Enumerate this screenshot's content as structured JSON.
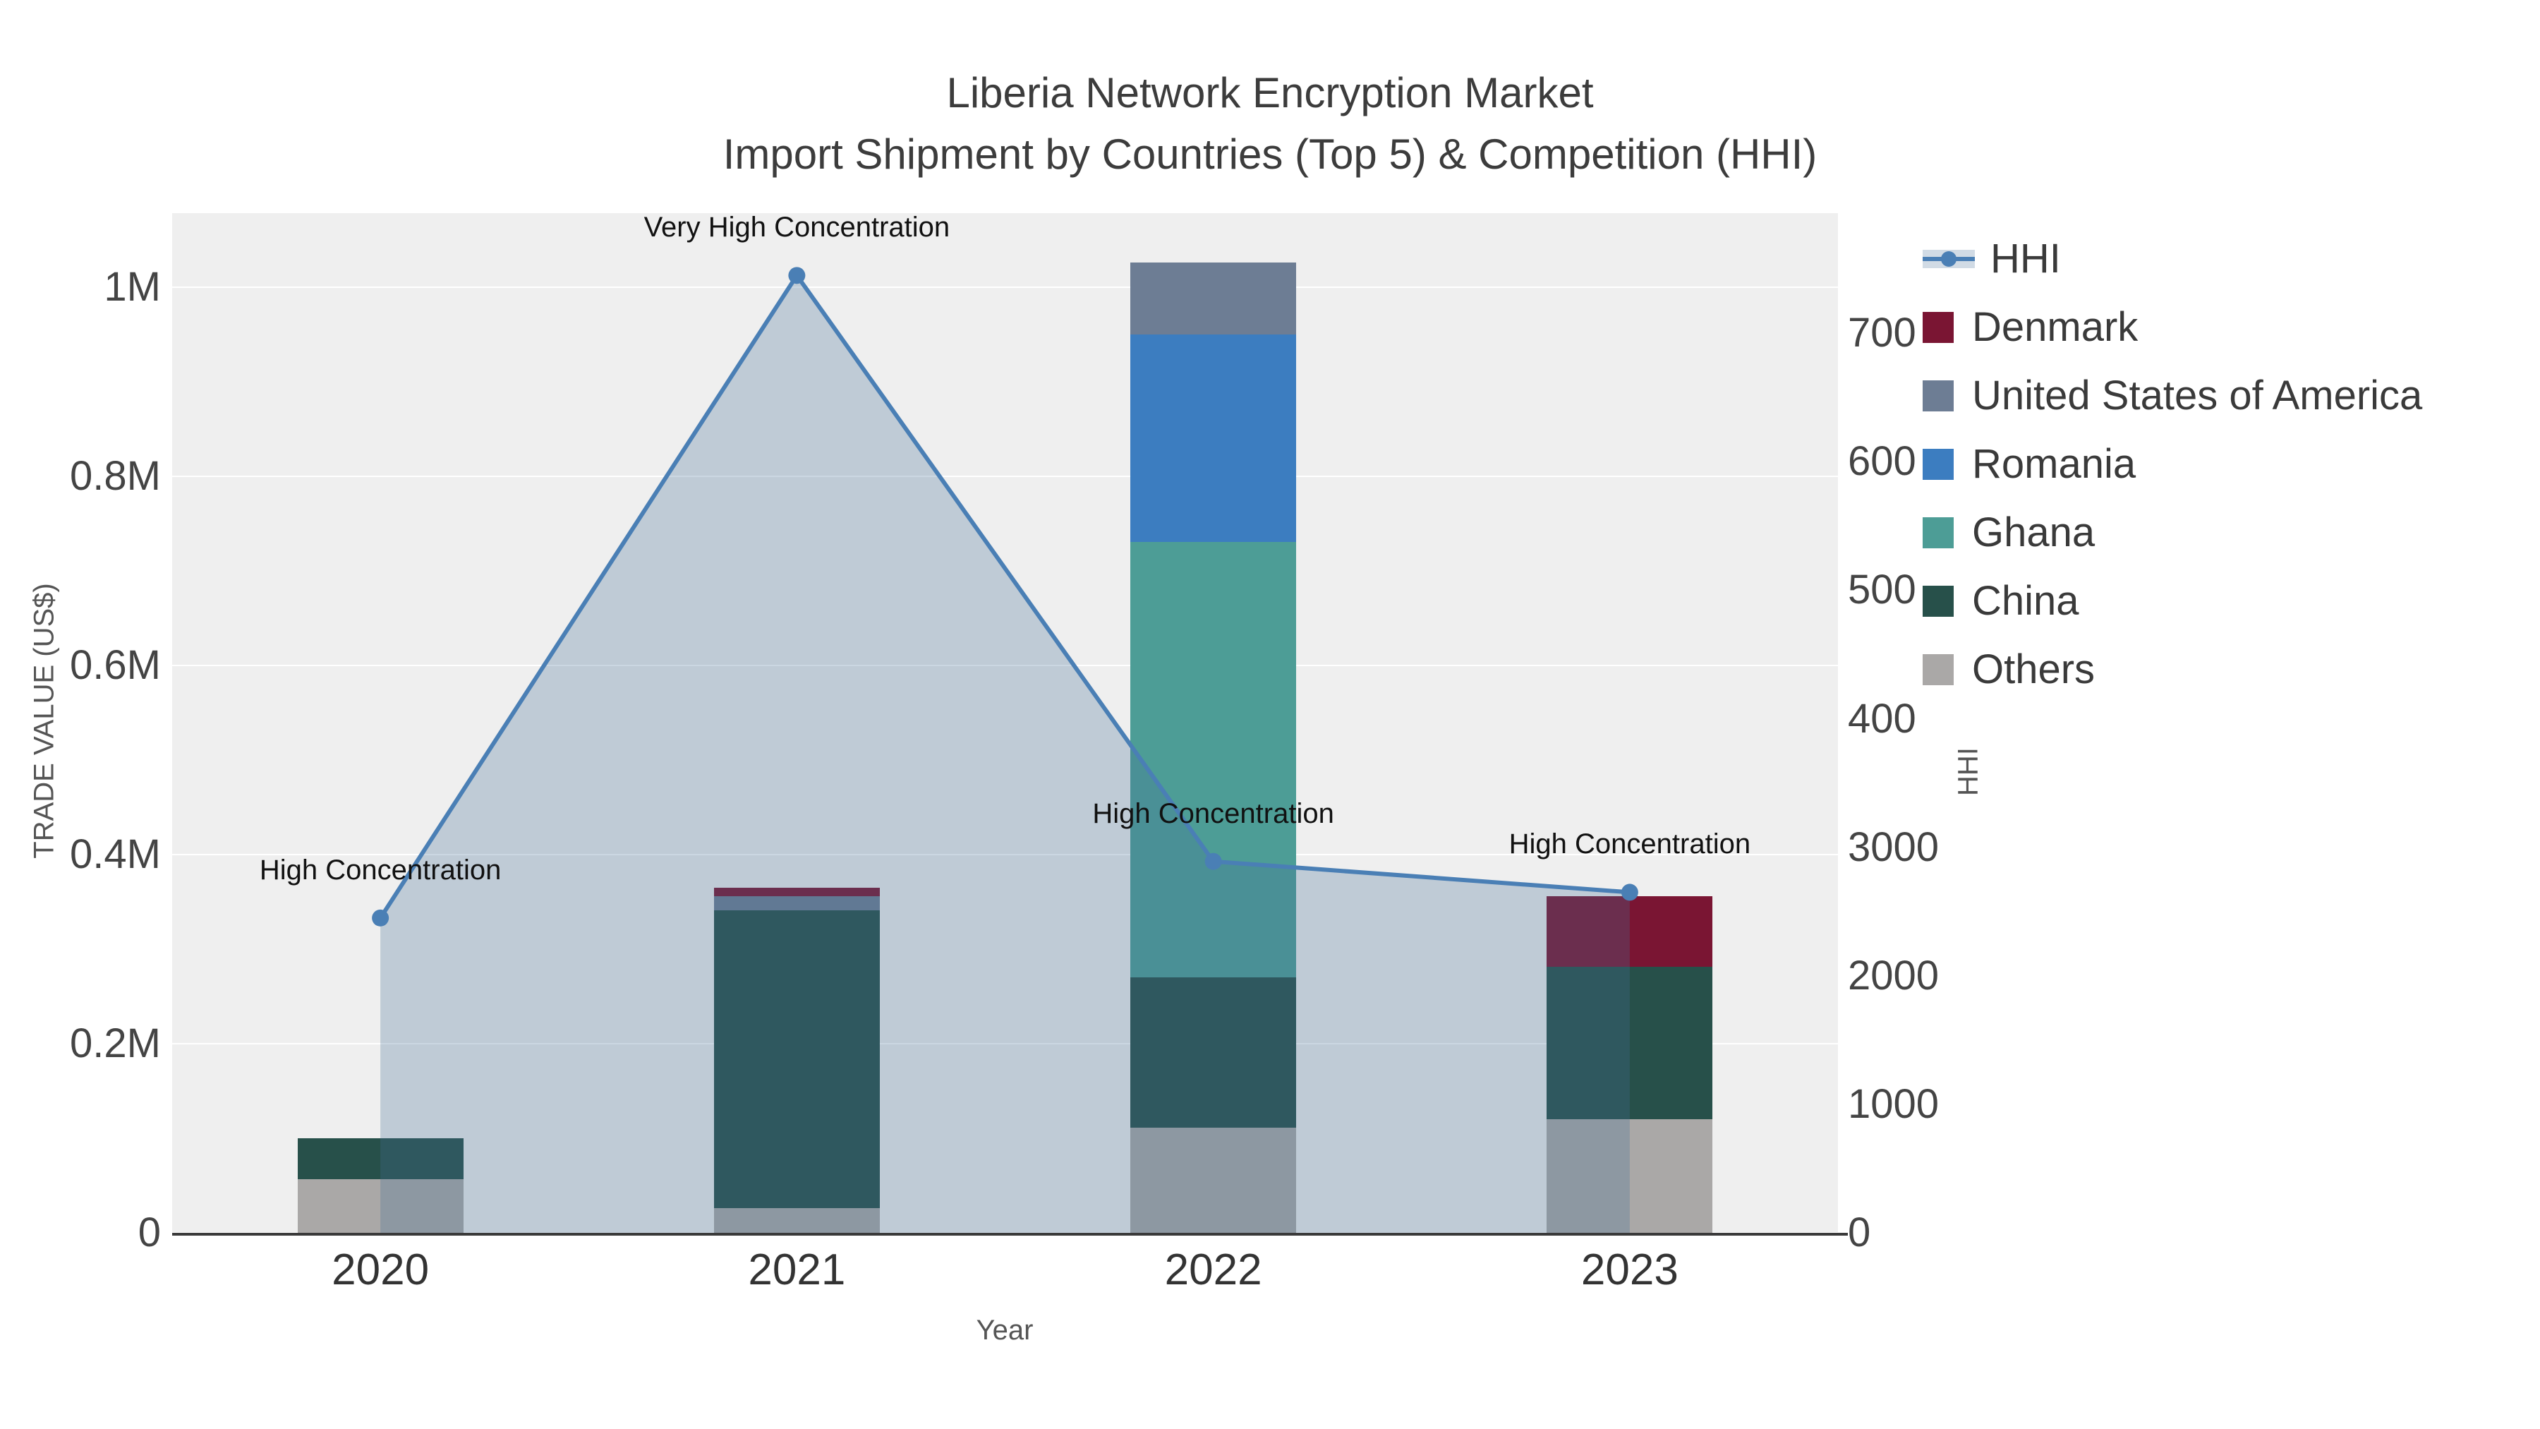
{
  "title": {
    "line1": "Liberia Network Encryption Market",
    "line2": "Import Shipment by Countries (Top 5) & Competition (HHI)"
  },
  "chart_data": {
    "type": "bar",
    "subtype": "stacked-bars-with-hhi-line-area",
    "categories": [
      "2020",
      "2021",
      "2022",
      "2023"
    ],
    "bar_series": [
      {
        "name": "Others",
        "color": "#aaa8a7",
        "values": [
          57000,
          26000,
          111000,
          120000
        ]
      },
      {
        "name": "China",
        "color": "#27504a",
        "values": [
          43000,
          315000,
          159000,
          161000
        ]
      },
      {
        "name": "Ghana",
        "color": "#4d9d96",
        "values": [
          0,
          0,
          460000,
          0
        ]
      },
      {
        "name": "Romania",
        "color": "#3c7dc0",
        "values": [
          0,
          0,
          220000,
          0
        ]
      },
      {
        "name": "United States of America",
        "color": "#6d7d94",
        "values": [
          0,
          15000,
          76000,
          0
        ]
      },
      {
        "name": "Denmark",
        "color": "#7a1533",
        "values": [
          0,
          9000,
          0,
          75000
        ]
      }
    ],
    "line_series": {
      "name": "HHI",
      "color": "#4a7fb5",
      "fill_color": "rgba(70,110,150,0.28)",
      "values": [
        2450,
        7450,
        2890,
        2650
      ]
    },
    "annotations": [
      {
        "category": "2020",
        "text": "High Concentration"
      },
      {
        "category": "2021",
        "text": "Very High Concentration"
      },
      {
        "category": "2022",
        "text": "High Concentration"
      },
      {
        "category": "2023",
        "text": "High Concentration"
      }
    ],
    "x_axis": {
      "label": "Year"
    },
    "y_left": {
      "label": "TRADE VALUE (US$)",
      "max": 1078000,
      "ticks": [
        0,
        200000,
        400000,
        600000,
        800000,
        1000000
      ],
      "tick_labels": [
        "0",
        "0.2M",
        "0.4M",
        "0.6M",
        "0.8M",
        "1M"
      ]
    },
    "y_right": {
      "label": "HHI",
      "max": 7935,
      "ticks": [
        0,
        1000,
        2000,
        3000,
        4000,
        5000,
        6000,
        7000
      ],
      "tick_labels": [
        "0",
        "1000",
        "2000",
        "3000",
        "4000",
        "5000",
        "6000",
        "7000"
      ]
    },
    "legend_order": [
      "HHI",
      "Denmark",
      "United States of America",
      "Romania",
      "Ghana",
      "China",
      "Others"
    ]
  }
}
